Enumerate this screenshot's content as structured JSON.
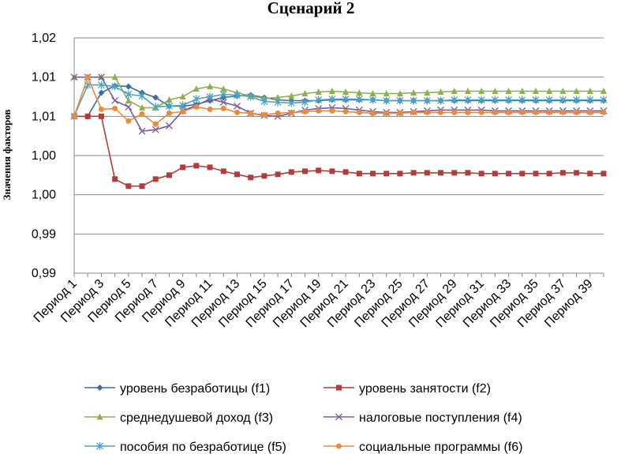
{
  "chart_data": {
    "type": "line",
    "title": "Сценарий 2",
    "ylabel": "Значения факторов",
    "xlabel": "",
    "ytick_labels": [
      "1,02",
      "1,01",
      "1,01",
      "1,00",
      "1,00",
      "0,99",
      "0,99"
    ],
    "ytick_values": [
      1.02,
      1.015,
      1.01,
      1.005,
      1.0,
      0.995,
      0.99
    ],
    "ylim": [
      0.99,
      1.02
    ],
    "grid": true,
    "legend_position": "bottom",
    "categories": [
      "Период 1",
      "Период 2",
      "Период 3",
      "Период 4",
      "Период 5",
      "Период 6",
      "Период 7",
      "Период 8",
      "Период 9",
      "Период 10",
      "Период 11",
      "Период 12",
      "Период 13",
      "Период 14",
      "Период 15",
      "Период 16",
      "Период 17",
      "Период 18",
      "Период 19",
      "Период 20",
      "Период 21",
      "Период 22",
      "Период 23",
      "Период 24",
      "Период 25",
      "Период 26",
      "Период 27",
      "Период 28",
      "Период 29",
      "Период 30",
      "Период 31",
      "Период 32",
      "Период 33",
      "Период 34",
      "Период 35",
      "Период 36",
      "Период 37",
      "Период 38",
      "Период 39",
      "Период 40"
    ],
    "xtick_labels": [
      "Период 1",
      "Период 3",
      "Период 5",
      "Период 7",
      "Период 9",
      "Период 11",
      "Период 13",
      "Период 15",
      "Период 17",
      "Период 19",
      "Период 21",
      "Период 23",
      "Период 25",
      "Период 27",
      "Период 29",
      "Период 31",
      "Период 33",
      "Период 35",
      "Период 37",
      "Период 39"
    ],
    "series": [
      {
        "name": "уровень безработицы  (f1)",
        "color": "#3C6BA5",
        "marker": "diamond",
        "values": [
          1.01,
          1.01,
          1.013,
          1.0139,
          1.0138,
          1.013,
          1.0124,
          1.0113,
          1.0113,
          1.0115,
          1.012,
          1.0124,
          1.0126,
          1.0127,
          1.0124,
          1.0121,
          1.012,
          1.012,
          1.012,
          1.0121,
          1.0121,
          1.0121,
          1.0121,
          1.012,
          1.012,
          1.012,
          1.012,
          1.012,
          1.012,
          1.012,
          1.012,
          1.012,
          1.012,
          1.012,
          1.012,
          1.012,
          1.012,
          1.012,
          1.012,
          1.012
        ]
      },
      {
        "name": "уровень занятости (f2)",
        "color": "#B23C39",
        "marker": "square",
        "values": [
          1.01,
          1.01,
          1.01,
          1.002,
          1.0011,
          1.0011,
          1.002,
          1.0025,
          1.0035,
          1.0037,
          1.0035,
          1.003,
          1.0026,
          1.0022,
          1.0024,
          1.0026,
          1.0029,
          1.003,
          1.0031,
          1.003,
          1.0029,
          1.0027,
          1.0027,
          1.0027,
          1.0027,
          1.0028,
          1.0028,
          1.0028,
          1.0028,
          1.0028,
          1.0027,
          1.0027,
          1.0027,
          1.0027,
          1.0027,
          1.0027,
          1.0028,
          1.0028,
          1.0027,
          1.0027
        ]
      },
      {
        "name": "среднедушевой доход (f3)",
        "color": "#8FAE4C",
        "marker": "triangle",
        "values": [
          1.015,
          1.015,
          1.015,
          1.015,
          1.012,
          1.0111,
          1.0111,
          1.0121,
          1.0125,
          1.0135,
          1.0138,
          1.0135,
          1.013,
          1.0126,
          1.0123,
          1.0124,
          1.0126,
          1.0129,
          1.0131,
          1.0132,
          1.0131,
          1.013,
          1.0129,
          1.0129,
          1.0129,
          1.013,
          1.013,
          1.0131,
          1.0132,
          1.0132,
          1.0132,
          1.0132,
          1.0132,
          1.0132,
          1.0132,
          1.0132,
          1.0132,
          1.0132,
          1.0132,
          1.0132
        ]
      },
      {
        "name": "налоговые поступления (f4)",
        "color": "#7A5A9E",
        "marker": "x",
        "values": [
          1.015,
          1.015,
          1.015,
          1.012,
          1.0112,
          1.0081,
          1.0083,
          1.0088,
          1.0107,
          1.0114,
          1.0122,
          1.0118,
          1.0113,
          1.0104,
          1.0101,
          1.01,
          1.0104,
          1.0108,
          1.011,
          1.0111,
          1.011,
          1.0108,
          1.0106,
          1.0105,
          1.0105,
          1.0106,
          1.0107,
          1.0108,
          1.0108,
          1.0108,
          1.0108,
          1.0107,
          1.0107,
          1.0107,
          1.0107,
          1.0107,
          1.0107,
          1.0107,
          1.0107,
          1.0107
        ]
      },
      {
        "name": "пособия по безработице (f5)",
        "color": "#4BA4C1",
        "marker": "star",
        "values": [
          1.01,
          1.014,
          1.014,
          1.0138,
          1.0128,
          1.0126,
          1.0112,
          1.0113,
          1.0114,
          1.0122,
          1.0125,
          1.0128,
          1.0127,
          1.0125,
          1.0119,
          1.0118,
          1.0117,
          1.0118,
          1.0121,
          1.0122,
          1.0122,
          1.0122,
          1.0121,
          1.012,
          1.012,
          1.012,
          1.012,
          1.012,
          1.0121,
          1.0121,
          1.0121,
          1.0121,
          1.0121,
          1.0121,
          1.0121,
          1.0121,
          1.0121,
          1.0121,
          1.0121,
          1.0121
        ]
      },
      {
        "name": "социальные программы (f6)",
        "color": "#E88B3A",
        "marker": "circle",
        "values": [
          1.01,
          1.015,
          1.0109,
          1.011,
          1.0094,
          1.0103,
          1.009,
          1.0104,
          1.0106,
          1.0112,
          1.0109,
          1.011,
          1.0105,
          1.0104,
          1.0102,
          1.0104,
          1.0105,
          1.0106,
          1.0107,
          1.0107,
          1.0106,
          1.0105,
          1.0104,
          1.0104,
          1.0104,
          1.0105,
          1.0105,
          1.0105,
          1.0105,
          1.0105,
          1.0105,
          1.0105,
          1.0105,
          1.0105,
          1.0105,
          1.0105,
          1.0105,
          1.0105,
          1.0105,
          1.0105
        ]
      }
    ]
  }
}
